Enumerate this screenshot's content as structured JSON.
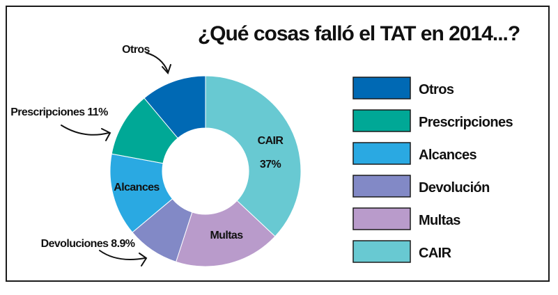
{
  "chart_data": {
    "type": "pie",
    "title": "¿Qué cosas falló el TAT en 2014...?",
    "categories": [
      "CAIR",
      "Multas",
      "Devolución",
      "Alcances",
      "Prescripciones",
      "Otros"
    ],
    "values": [
      37,
      18,
      8.9,
      14,
      11,
      11.1
    ],
    "colors": [
      "#68c9d2",
      "#b99bcb",
      "#8289c6",
      "#2aa9e2",
      "#00a896",
      "#0069b4"
    ],
    "legend": {
      "placement": "right",
      "items": [
        "Otros",
        "Prescripciones",
        "Alcances",
        "Devolución",
        "Multas",
        "CAIR"
      ],
      "colors": [
        "#0069b4",
        "#00a896",
        "#2aa9e2",
        "#8289c6",
        "#b99bcb",
        "#68c9d2"
      ]
    },
    "labels": {
      "cair_name": "CAIR",
      "cair_value": "37%",
      "multas": "Multas",
      "alcances": "Alcances",
      "otros": "Otros",
      "prescripciones": "Prescripciones 11%",
      "devoluciones": "Devoluciones 8.9%"
    }
  }
}
